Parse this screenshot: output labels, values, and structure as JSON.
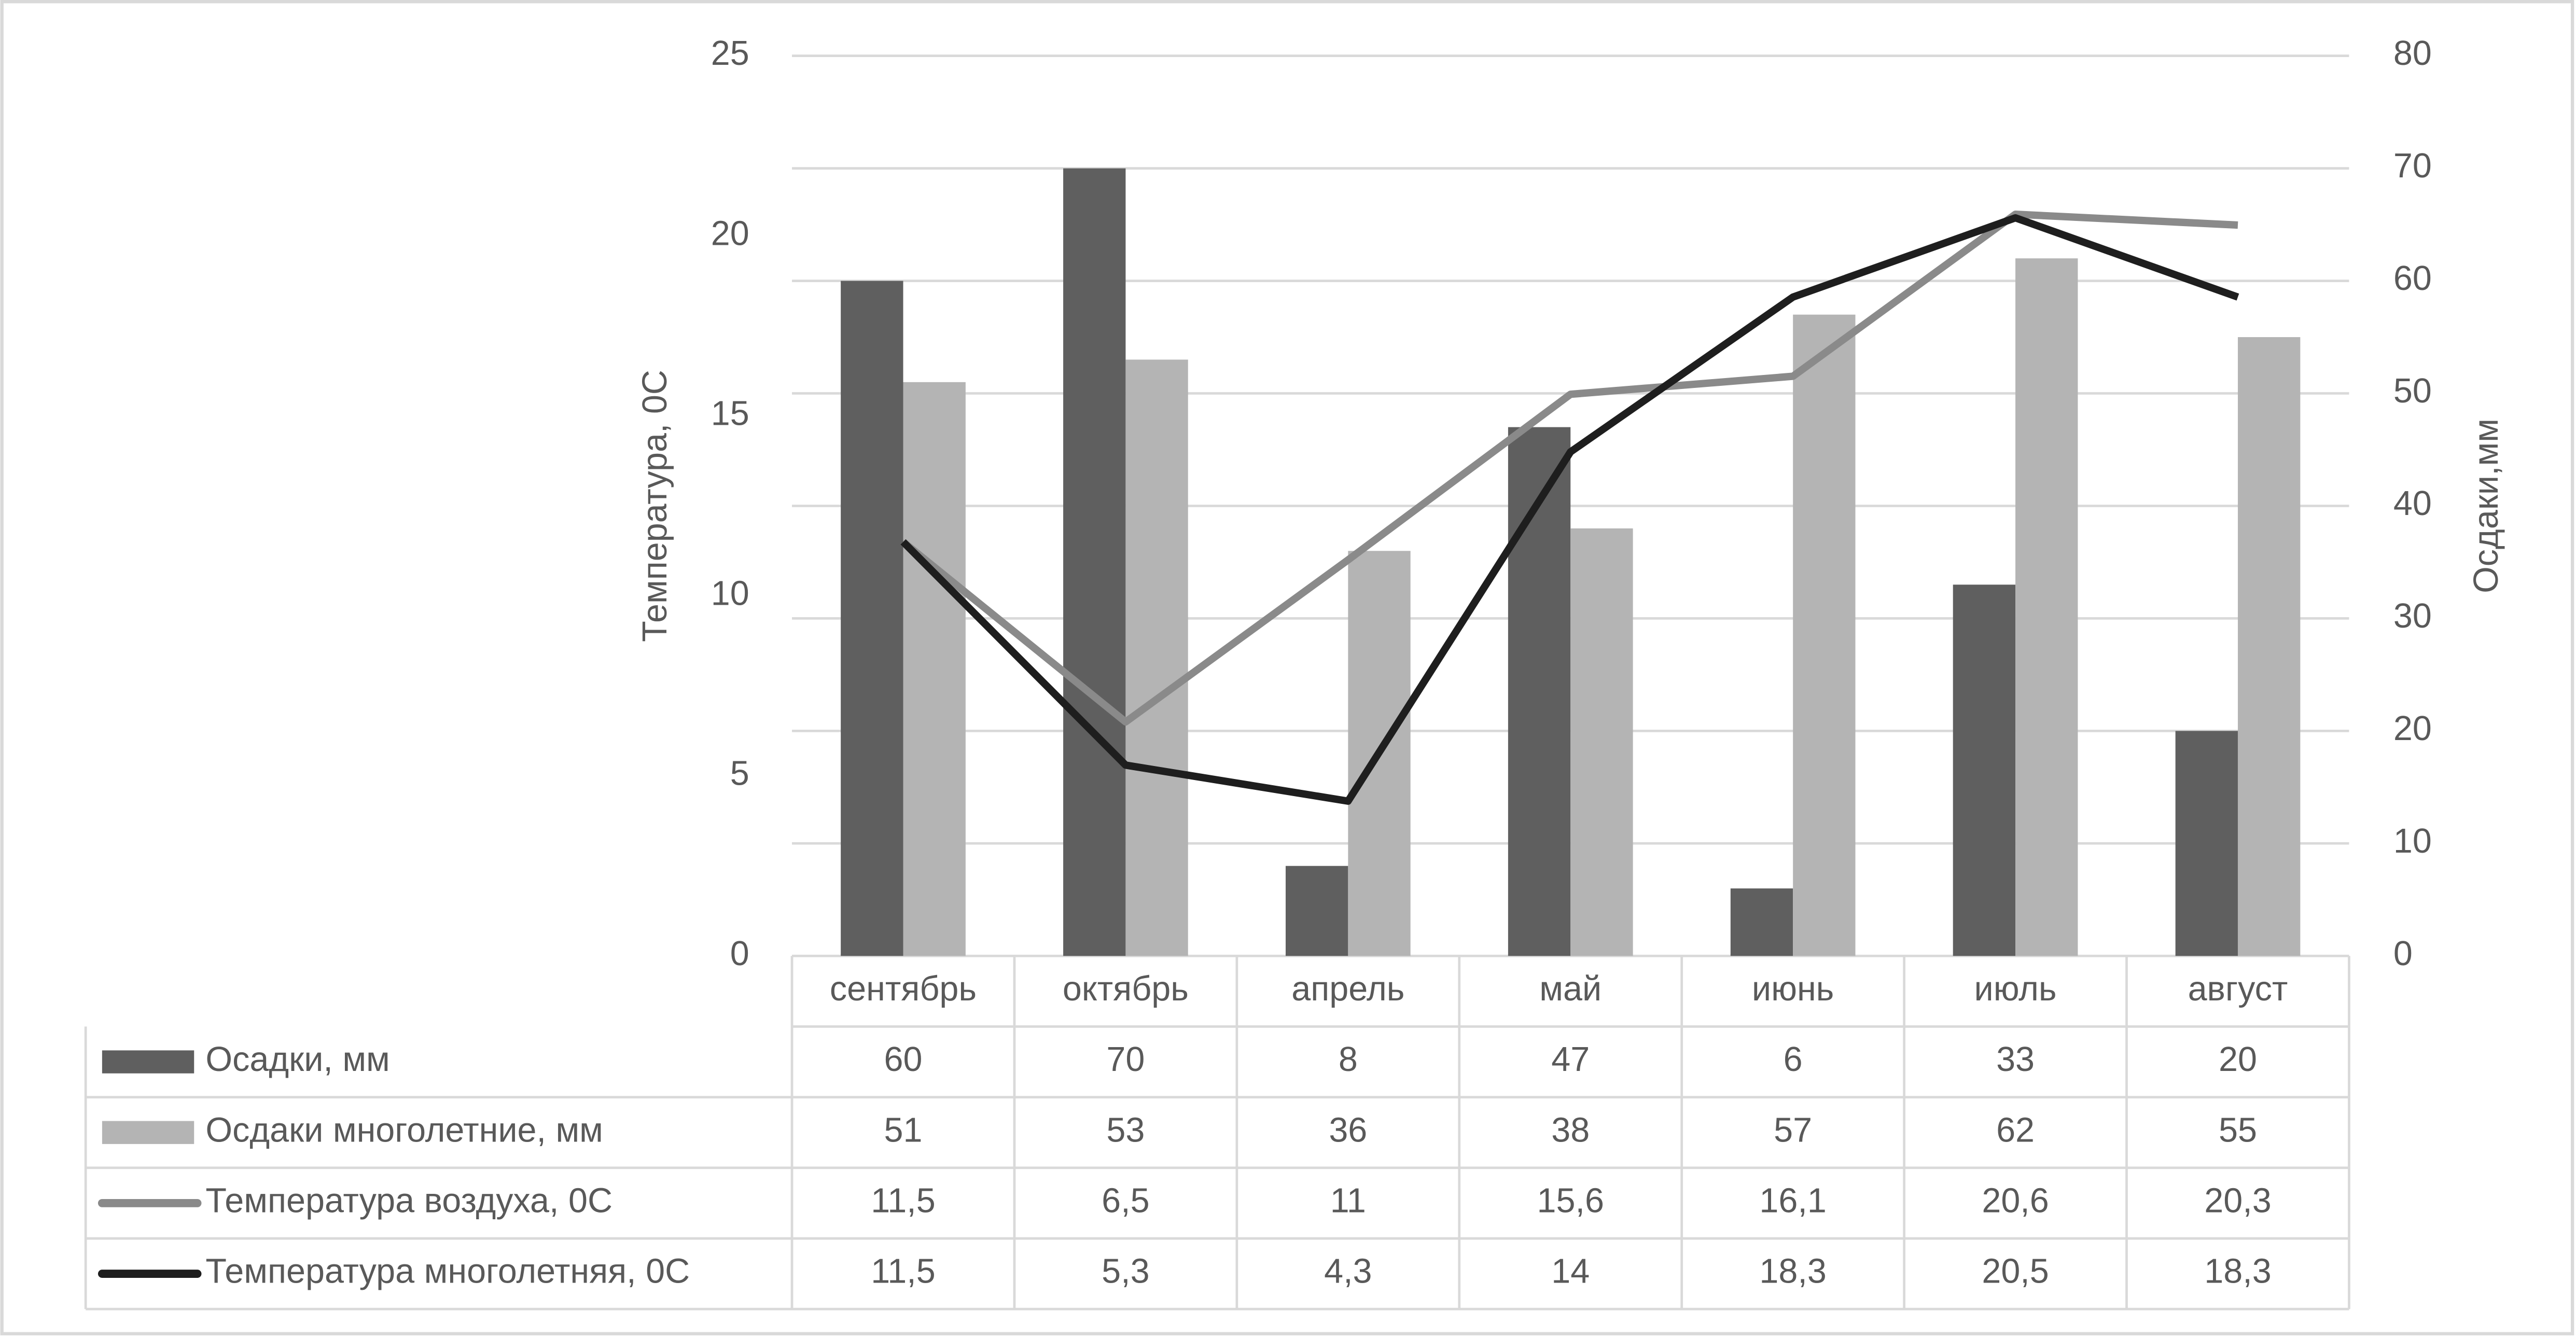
{
  "chart_data": {
    "type": "bar",
    "categories": [
      "сентябрь",
      "октябрь",
      "апрель",
      "май",
      "июнь",
      "июль",
      "август"
    ],
    "y_label": "Температура, 0С",
    "y2_label": "Осдаки,мм",
    "ylim": [
      0,
      25
    ],
    "yticks": [
      0,
      5,
      10,
      15,
      20,
      25
    ],
    "y2lim": [
      0,
      80
    ],
    "y2ticks": [
      0,
      10,
      20,
      30,
      40,
      50,
      60,
      70,
      80
    ],
    "grid": true,
    "series": [
      {
        "name": "Осадки, мм",
        "type": "bar",
        "axis": "y2",
        "color": "#5f5f5f",
        "values": [
          60,
          70,
          8,
          47,
          6,
          33,
          20
        ]
      },
      {
        "name": "Осдаки многолетние, мм",
        "type": "bar",
        "axis": "y2",
        "color": "#b4b4b4",
        "values": [
          51,
          53,
          36,
          38,
          57,
          62,
          55
        ]
      },
      {
        "name": "Температура воздуха, 0С",
        "type": "line",
        "axis": "y",
        "color": "#8a8a8a",
        "values": [
          11.5,
          6.5,
          11,
          15.6,
          16.1,
          20.6,
          20.3
        ],
        "value_labels": [
          "11,5",
          "6,5",
          "11",
          "15,6",
          "16,1",
          "20,6",
          "20,3"
        ]
      },
      {
        "name": "Температура многолетняя, 0С",
        "type": "line",
        "axis": "y",
        "color": "#1e1e1e",
        "values": [
          11.5,
          5.3,
          4.3,
          14,
          18.3,
          20.5,
          18.3
        ],
        "value_labels": [
          "11,5",
          "5,3",
          "4,3",
          "14",
          "18,3",
          "20,5",
          "18,3"
        ]
      }
    ]
  }
}
